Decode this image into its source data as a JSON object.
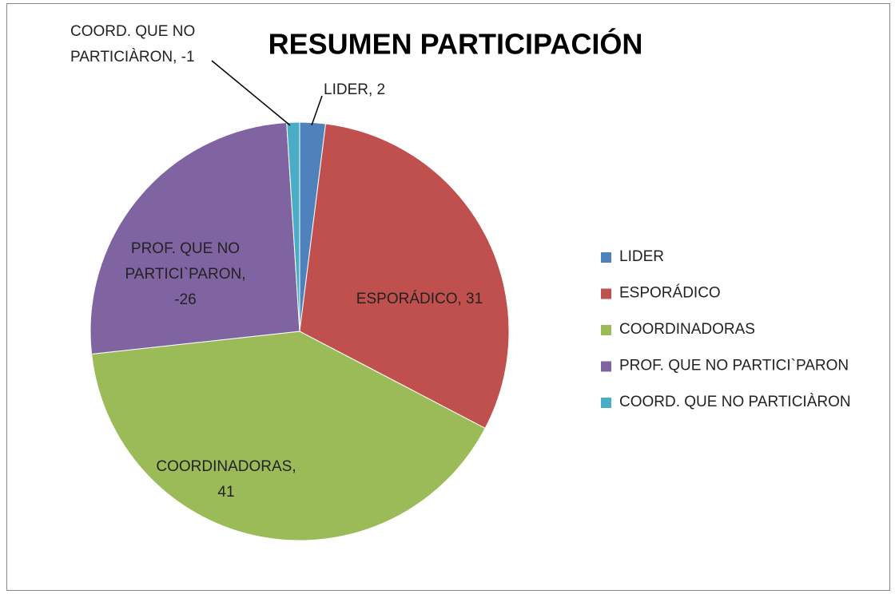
{
  "chart_data": {
    "type": "pie",
    "title": "RESUMEN PARTICIPACIÓN",
    "categories": [
      "LIDER",
      "ESPORÁDICO",
      "COORDINADORAS",
      "PROF. QUE NO PARTICI`PARON",
      "COORD. QUE NO PARTICIÀRON"
    ],
    "values": [
      2,
      31,
      41,
      -26,
      -1
    ],
    "value_labels": [
      "LIDER, 2",
      "ESPORÁDICO, 31",
      "COORDINADORAS, 41",
      "PROF. QUE NO PARTICI`PARON, -26",
      "COORD. QUE NO PARTICIÀRON, -1"
    ],
    "colors": [
      "#4f81bd",
      "#c0504d",
      "#9bbb59",
      "#8064a2",
      "#4bacc6"
    ],
    "legend": "right"
  }
}
